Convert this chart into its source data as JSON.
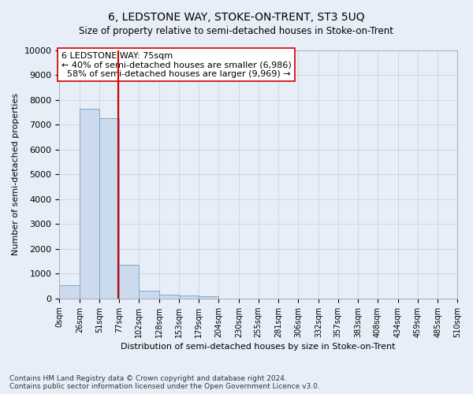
{
  "title": "6, LEDSTONE WAY, STOKE-ON-TRENT, ST3 5UQ",
  "subtitle": "Size of property relative to semi-detached houses in Stoke-on-Trent",
  "xlabel": "Distribution of semi-detached houses by size in Stoke-on-Trent",
  "ylabel": "Number of semi-detached properties",
  "footer": "Contains HM Land Registry data © Crown copyright and database right 2024.\nContains public sector information licensed under the Open Government Licence v3.0.",
  "bin_labels": [
    "0sqm",
    "26sqm",
    "51sqm",
    "77sqm",
    "102sqm",
    "128sqm",
    "153sqm",
    "179sqm",
    "204sqm",
    "230sqm",
    "255sqm",
    "281sqm",
    "306sqm",
    "332sqm",
    "357sqm",
    "383sqm",
    "408sqm",
    "434sqm",
    "459sqm",
    "485sqm",
    "510sqm"
  ],
  "bar_heights": [
    530,
    7650,
    7280,
    1360,
    320,
    155,
    110,
    80,
    0,
    0,
    0,
    0,
    0,
    0,
    0,
    0,
    0,
    0,
    0,
    0
  ],
  "bar_color": "#ccdaee",
  "bar_edge_color": "#7aaad0",
  "vline_x": 75,
  "vline_color": "#cc0000",
  "pct_smaller": 40,
  "count_smaller": 6986,
  "pct_larger": 58,
  "count_larger": 9969,
  "property_label": "6 LEDSTONE WAY: 75sqm",
  "ylim": [
    0,
    10000
  ],
  "yticks": [
    0,
    1000,
    2000,
    3000,
    4000,
    5000,
    6000,
    7000,
    8000,
    9000,
    10000
  ],
  "annotation_box_color": "#ffffff",
  "annotation_box_edge": "#cc0000",
  "grid_color": "#cccccc",
  "background_color": "#e8eef8",
  "bin_edges": [
    0,
    26,
    51,
    77,
    102,
    128,
    153,
    179,
    204,
    230,
    255,
    281,
    306,
    332,
    357,
    383,
    408,
    434,
    459,
    485,
    510
  ]
}
